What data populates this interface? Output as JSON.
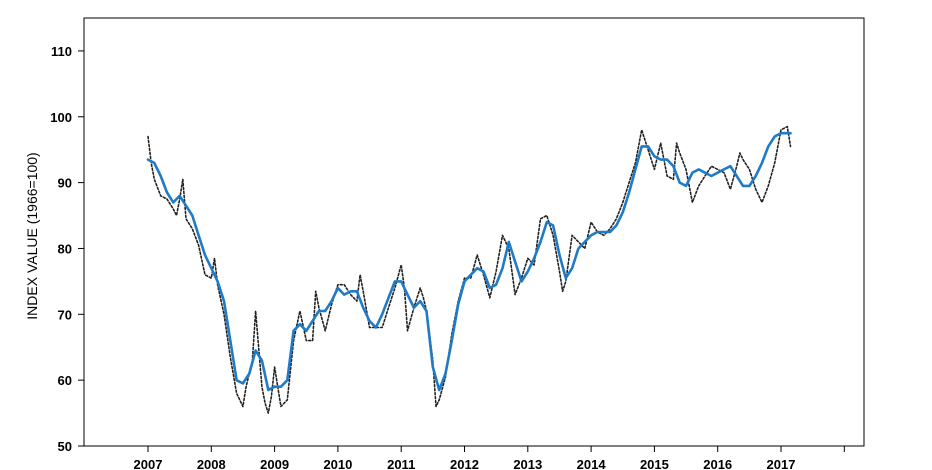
{
  "chart_data": {
    "type": "line",
    "title": "",
    "xlabel": "",
    "ylabel": "INDEX VALUE (1966=100)",
    "ylim": [
      50,
      115
    ],
    "xlim": [
      2007,
      2018
    ],
    "yticks": [
      50,
      60,
      70,
      80,
      90,
      100,
      110
    ],
    "xticks": [
      2007,
      2008,
      2009,
      2010,
      2011,
      2012,
      2013,
      2014,
      2015,
      2016,
      2017
    ],
    "grid": false,
    "legend": "none",
    "series": [
      {
        "style": "solid",
        "color": "#1f7bc6",
        "x": [
          2007.0,
          2007.1,
          2007.2,
          2007.3,
          2007.4,
          2007.5,
          2007.6,
          2007.7,
          2007.8,
          2007.9,
          2008.0,
          2008.1,
          2008.2,
          2008.3,
          2008.4,
          2008.5,
          2008.6,
          2008.7,
          2008.8,
          2008.9,
          2009.0,
          2009.1,
          2009.2,
          2009.3,
          2009.4,
          2009.5,
          2009.6,
          2009.7,
          2009.8,
          2009.9,
          2010.0,
          2010.1,
          2010.2,
          2010.3,
          2010.4,
          2010.5,
          2010.6,
          2010.7,
          2010.8,
          2010.9,
          2011.0,
          2011.1,
          2011.2,
          2011.3,
          2011.4,
          2011.5,
          2011.6,
          2011.7,
          2011.8,
          2011.9,
          2012.0,
          2012.1,
          2012.2,
          2012.3,
          2012.4,
          2012.5,
          2012.6,
          2012.7,
          2012.8,
          2012.9,
          2013.0,
          2013.1,
          2013.2,
          2013.3,
          2013.4,
          2013.5,
          2013.6,
          2013.7,
          2013.8,
          2013.9,
          2014.0,
          2014.1,
          2014.2,
          2014.3,
          2014.4,
          2014.5,
          2014.6,
          2014.7,
          2014.8,
          2014.9,
          2015.0,
          2015.1,
          2015.2,
          2015.3,
          2015.4,
          2015.5,
          2015.6,
          2015.7,
          2015.8,
          2015.9,
          2016.0,
          2016.1,
          2016.2,
          2016.3,
          2016.4,
          2016.5,
          2016.6,
          2016.7,
          2016.8,
          2016.9,
          2017.0,
          2017.1,
          2017.15
        ],
        "values": [
          93.5,
          93.0,
          91.0,
          88.5,
          87.0,
          88.0,
          86.5,
          85.0,
          82.0,
          79.0,
          77.0,
          75.0,
          72.0,
          66.0,
          60.0,
          59.5,
          61.0,
          64.5,
          63.0,
          58.5,
          59.0,
          59.0,
          60.0,
          67.5,
          68.5,
          67.5,
          69.0,
          70.5,
          70.5,
          72.0,
          74.0,
          73.0,
          73.5,
          73.5,
          71.0,
          69.0,
          68.0,
          70.0,
          72.5,
          75.0,
          75.0,
          73.0,
          71.0,
          72.0,
          70.5,
          62.0,
          58.5,
          61.0,
          66.0,
          71.5,
          75.0,
          76.0,
          77.0,
          76.5,
          74.0,
          74.5,
          77.0,
          81.0,
          78.0,
          75.0,
          76.5,
          78.5,
          81.0,
          84.0,
          83.5,
          79.0,
          75.5,
          77.0,
          80.0,
          81.0,
          82.0,
          82.5,
          82.5,
          82.5,
          83.5,
          85.5,
          88.5,
          92.0,
          95.5,
          95.5,
          94.0,
          93.5,
          93.5,
          92.5,
          90.0,
          89.5,
          91.5,
          92.0,
          91.5,
          91.0,
          91.5,
          92.0,
          92.5,
          91.0,
          89.5,
          89.5,
          91.0,
          93.0,
          95.5,
          97.0,
          97.5,
          97.5,
          97.5
        ]
      },
      {
        "style": "dotted",
        "color": "#222222",
        "x": [
          2007.0,
          2007.05,
          2007.1,
          2007.2,
          2007.3,
          2007.4,
          2007.45,
          2007.5,
          2007.55,
          2007.6,
          2007.7,
          2007.8,
          2007.9,
          2008.0,
          2008.05,
          2008.1,
          2008.2,
          2008.3,
          2008.4,
          2008.5,
          2008.55,
          2008.65,
          2008.7,
          2008.8,
          2008.85,
          2008.9,
          2008.95,
          2009.0,
          2009.1,
          2009.2,
          2009.3,
          2009.4,
          2009.5,
          2009.6,
          2009.65,
          2009.7,
          2009.8,
          2009.9,
          2010.0,
          2010.1,
          2010.2,
          2010.3,
          2010.35,
          2010.4,
          2010.5,
          2010.6,
          2010.7,
          2010.8,
          2010.9,
          2011.0,
          2011.05,
          2011.1,
          2011.2,
          2011.3,
          2011.35,
          2011.4,
          2011.5,
          2011.55,
          2011.6,
          2011.7,
          2011.8,
          2011.9,
          2012.0,
          2012.1,
          2012.2,
          2012.3,
          2012.4,
          2012.5,
          2012.6,
          2012.7,
          2012.8,
          2012.9,
          2013.0,
          2013.1,
          2013.2,
          2013.3,
          2013.4,
          2013.5,
          2013.55,
          2013.6,
          2013.7,
          2013.8,
          2013.9,
          2014.0,
          2014.1,
          2014.2,
          2014.3,
          2014.4,
          2014.5,
          2014.6,
          2014.7,
          2014.8,
          2014.9,
          2015.0,
          2015.1,
          2015.2,
          2015.3,
          2015.35,
          2015.4,
          2015.5,
          2015.6,
          2015.7,
          2015.8,
          2015.9,
          2016.0,
          2016.1,
          2016.2,
          2016.3,
          2016.35,
          2016.4,
          2016.5,
          2016.6,
          2016.7,
          2016.8,
          2016.9,
          2017.0,
          2017.1,
          2017.15
        ],
        "values": [
          97.0,
          93.0,
          90.5,
          88.0,
          87.5,
          86.0,
          85.0,
          87.5,
          90.5,
          84.5,
          83.0,
          80.5,
          76.0,
          75.5,
          78.5,
          74.5,
          70.0,
          63.5,
          58.0,
          56.0,
          59.0,
          63.0,
          70.5,
          59.0,
          56.5,
          55.0,
          57.5,
          62.0,
          56.0,
          57.0,
          66.0,
          70.5,
          66.0,
          66.0,
          73.5,
          71.0,
          67.5,
          71.5,
          74.5,
          74.5,
          73.0,
          72.0,
          76.0,
          73.5,
          68.0,
          68.0,
          68.0,
          71.0,
          74.0,
          77.5,
          74.0,
          67.5,
          71.0,
          74.0,
          72.5,
          70.5,
          63.0,
          56.0,
          57.0,
          60.5,
          67.0,
          72.0,
          75.5,
          75.5,
          79.0,
          76.0,
          72.5,
          76.5,
          82.0,
          80.0,
          73.0,
          75.5,
          78.5,
          77.5,
          84.5,
          85.0,
          82.0,
          76.5,
          73.5,
          75.0,
          82.0,
          81.0,
          80.0,
          84.0,
          82.5,
          82.0,
          83.0,
          84.5,
          87.0,
          90.0,
          93.0,
          98.0,
          95.0,
          92.0,
          96.0,
          91.0,
          90.5,
          96.0,
          94.5,
          92.0,
          87.0,
          89.5,
          91.0,
          92.5,
          92.0,
          91.5,
          89.0,
          92.5,
          94.5,
          93.5,
          92.0,
          89.0,
          87.0,
          89.5,
          93.0,
          98.0,
          98.5,
          95.5
        ]
      }
    ]
  }
}
